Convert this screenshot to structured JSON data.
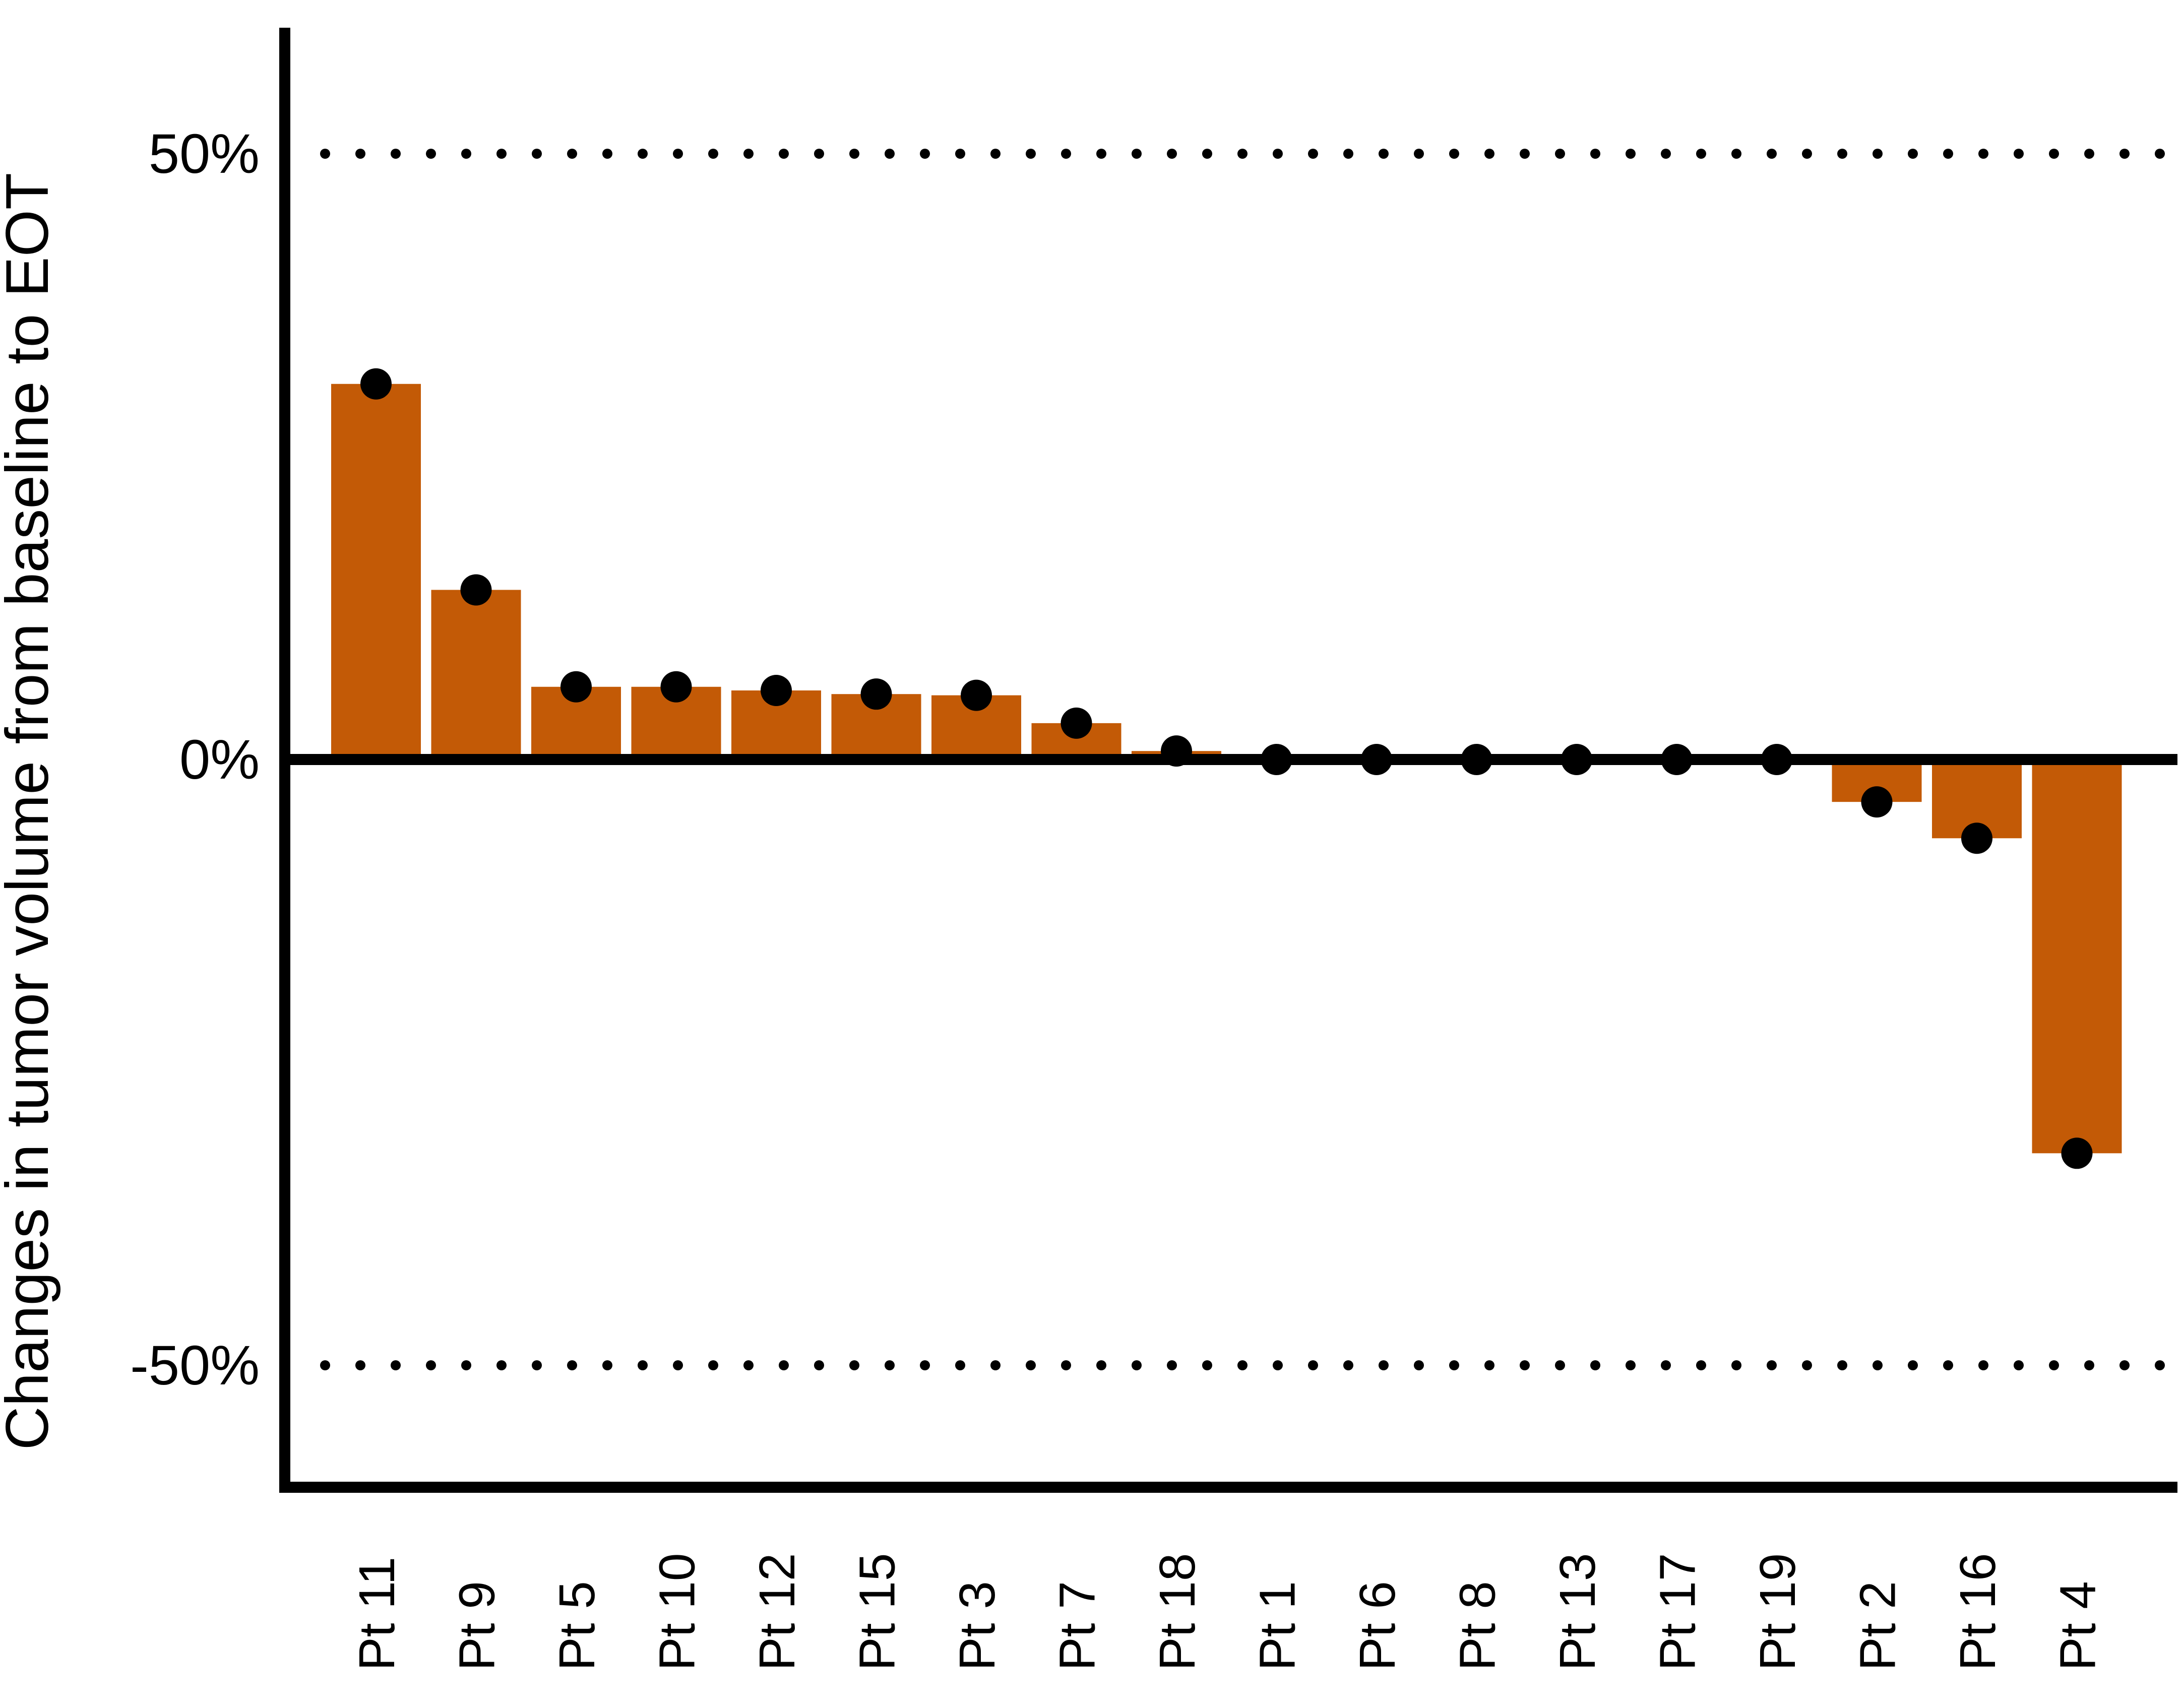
{
  "chart_data": {
    "type": "bar",
    "ylabel": "Changes in tumor volume from baseline to EOT",
    "xlabel": "",
    "ylim": [
      -60,
      60
    ],
    "yticks": [
      {
        "value": 50,
        "label": "50%"
      },
      {
        "value": 0,
        "label": "0%"
      },
      {
        "value": -50,
        "label": "-50%"
      }
    ],
    "reference_lines": [
      50,
      -50
    ],
    "grid": false,
    "categories": [
      "Pt 11",
      "Pt 9",
      "Pt 5",
      "Pt 10",
      "Pt 12",
      "Pt 15",
      "Pt 3",
      "Pt 7",
      "Pt 18",
      "Pt 1",
      "Pt 6",
      "Pt 8",
      "Pt 13",
      "Pt 17",
      "Pt 19",
      "Pt 2",
      "Pt 16",
      "Pt 4"
    ],
    "values": [
      31,
      14,
      6,
      6,
      5.7,
      5.4,
      5.3,
      3,
      0.7,
      0,
      0,
      0,
      0,
      0,
      0,
      -3.5,
      -6.5,
      -32.5
    ],
    "colors": {
      "bar": "#C35A06",
      "marker": "#000000",
      "axis": "#000000"
    }
  }
}
